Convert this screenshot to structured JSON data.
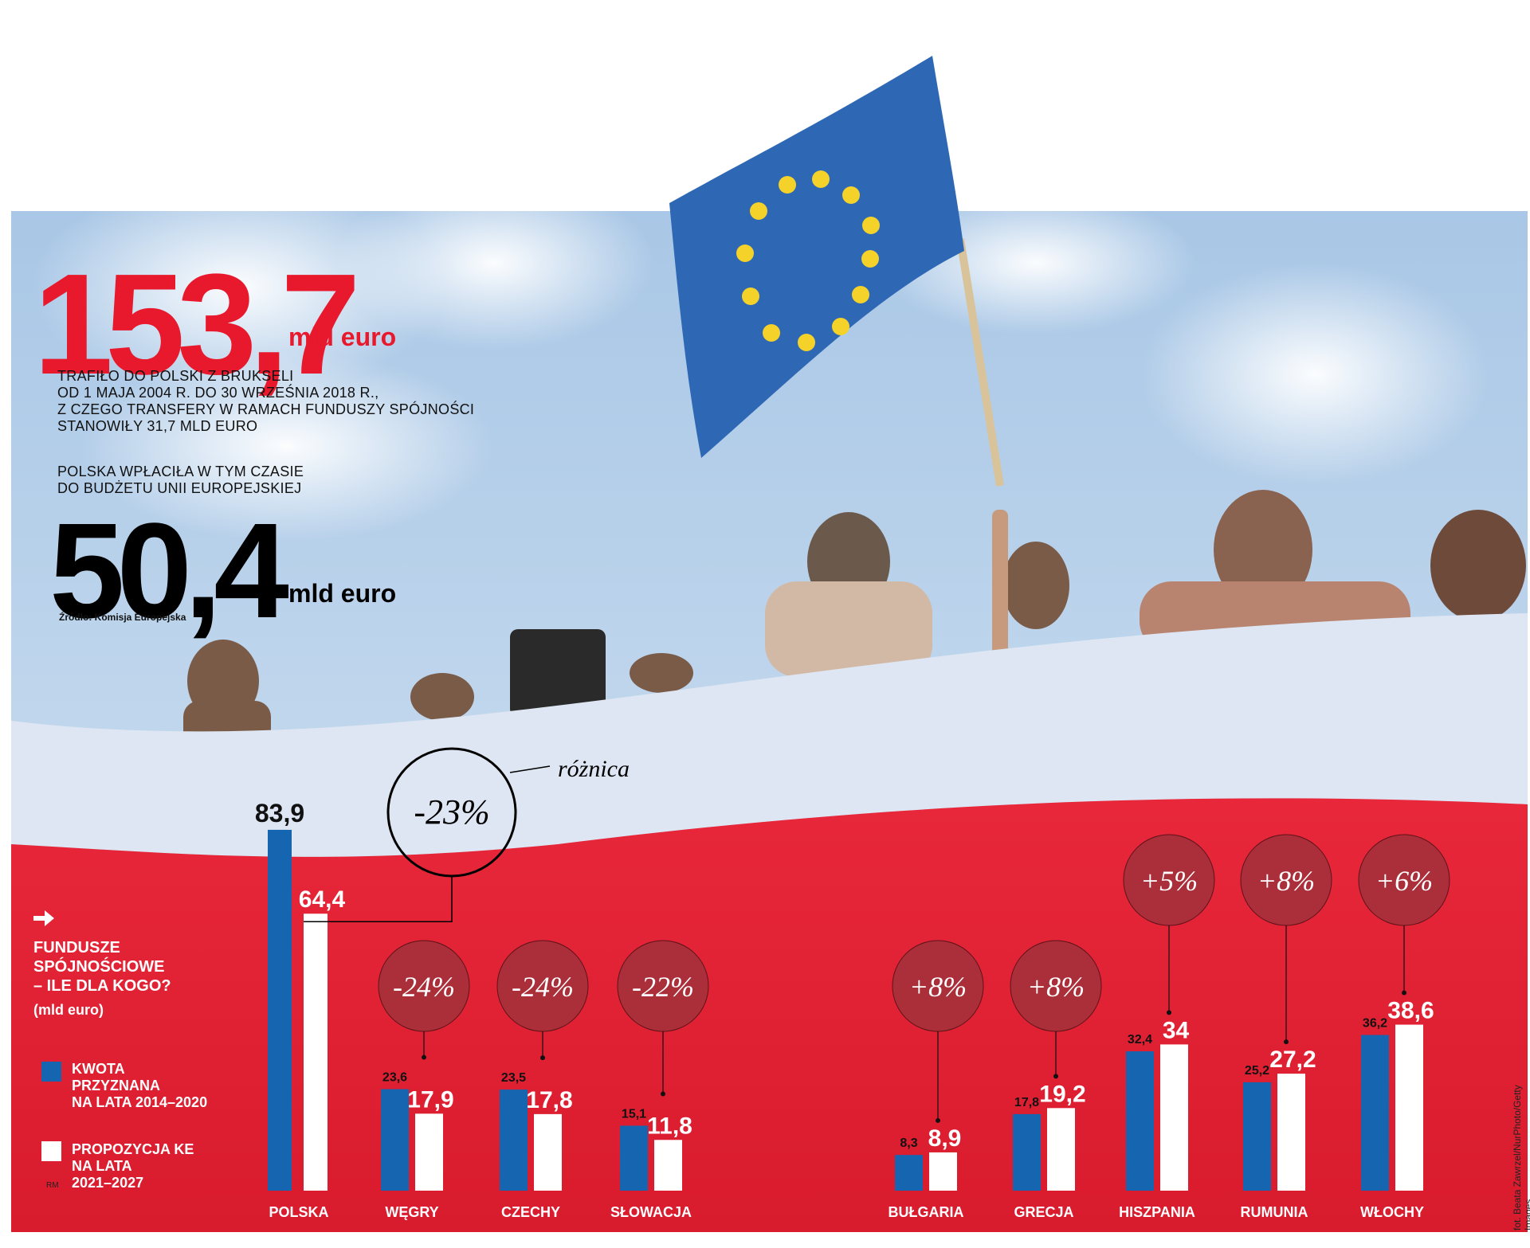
{
  "headline": {
    "value": "153,7",
    "unit": "mld euro",
    "description": [
      "TRAFIŁO DO POLSKI Z BRUKSELI",
      "OD 1 MAJA 2004 R. DO 30 WRZEŚNIA 2018 R.,",
      "Z CZEGO TRANSFERY W RAMACH FUNDUSZY SPÓJNOŚCI",
      "STANOWIŁY 31,7 MLD EURO"
    ]
  },
  "paid": {
    "description": [
      "POLSKA WPŁACIŁA W TYM CZASIE",
      "DO BUDŻETU UNII EUROPEJSKIEJ"
    ],
    "value": "50,4",
    "unit": "mld euro",
    "source": "Źródło: Komisja Europejska"
  },
  "legend": {
    "title": [
      "FUNDUSZE",
      "SPÓJNOŚCIOWE",
      "– ILE DLA KOGO?"
    ],
    "unit": "(mld euro)",
    "items": [
      {
        "label": [
          "KWOTA",
          "PRZYZNANA",
          "NA LATA 2014–2020"
        ],
        "color": "#1565b0"
      },
      {
        "label": [
          "PROPOZYCJA KE",
          "NA LATA",
          "2021–2027"
        ],
        "color": "#ffffff"
      }
    ]
  },
  "annotation_label": "różnica",
  "credit": "fot. Beata Zawrzel/NurPhoto/Getty Images",
  "author": "RM",
  "colors": {
    "red": "#e8192c",
    "blue": "#1565b0",
    "sky": "#b9d3ec"
  },
  "chart_data": {
    "type": "bar",
    "categories": [
      "POLSKA",
      "WĘGRY",
      "CZECHY",
      "SŁOWACJA",
      "BUŁGARIA",
      "GRECJA",
      "HISZPANIA",
      "RUMUNIA",
      "WŁOCHY"
    ],
    "series": [
      {
        "name": "KWOTA PRZYZNANA NA LATA 2014–2020",
        "values": [
          83.9,
          23.6,
          23.5,
          15.1,
          8.3,
          17.8,
          32.4,
          25.2,
          36.2
        ],
        "labels": [
          "83,9",
          "23,6",
          "23,5",
          "15,1",
          "8,3",
          "17,8",
          "32,4",
          "25,2",
          "36,2"
        ]
      },
      {
        "name": "PROPOZYCJA KE NA LATA 2021–2027",
        "values": [
          64.4,
          17.9,
          17.8,
          11.8,
          8.9,
          19.2,
          34,
          27.2,
          38.6
        ],
        "labels": [
          "64,4",
          "17,9",
          "17,8",
          "11,8",
          "8,9",
          "19,2",
          "34",
          "27,2",
          "38,6"
        ]
      }
    ],
    "differences": [
      "-23%",
      "-24%",
      "-24%",
      "-22%",
      "+8%",
      "+8%",
      "+5%",
      "+8%",
      "+6%"
    ]
  }
}
